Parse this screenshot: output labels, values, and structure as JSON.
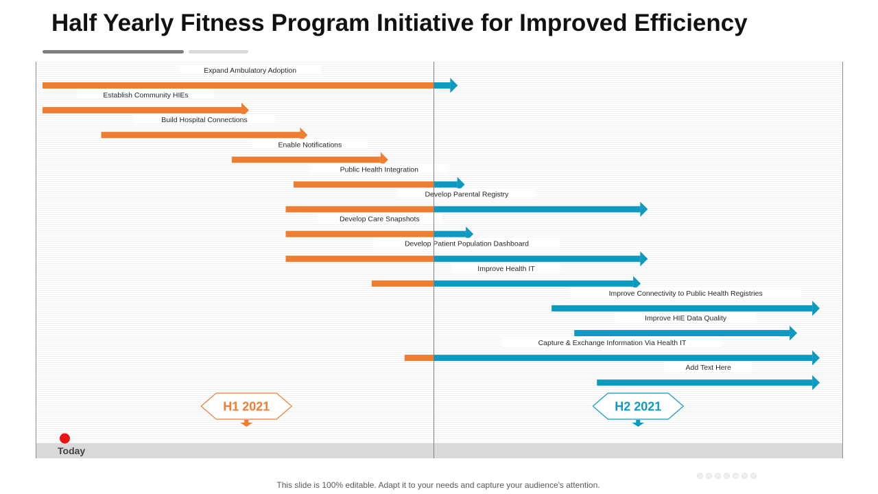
{
  "title": "Half Yearly Fitness Program Initiative for Improved Efficiency",
  "footer": "This slide is 100% editable. Adapt it to your needs and capture your audience's attention.",
  "today_label": "Today",
  "colors": {
    "h1": "#ED7D31",
    "h2": "#0E9AC0",
    "today": "#E81414",
    "divider": "#7f7f7f",
    "band": "#d9d9d9"
  },
  "chart_data": {
    "type": "gantt",
    "periods": [
      {
        "label": "H1 2021",
        "color": "#ED7D31"
      },
      {
        "label": "H2 2021",
        "color": "#0E9AC0"
      }
    ],
    "x_range": [
      0,
      100
    ],
    "divider_at": 50,
    "today_at": 2.5,
    "tasks": [
      {
        "label": "Expand Ambulatory Adoption",
        "start": 0,
        "end": 53.1
      },
      {
        "label": "Establish Community  HIEs",
        "start": 0,
        "end": 26.4
      },
      {
        "label": "Build Hospital Connections",
        "start": 7.5,
        "end": 33.9
      },
      {
        "label": "Enable Notifications",
        "start": 24.2,
        "end": 44.2
      },
      {
        "label": "Public Health Integration",
        "start": 32.1,
        "end": 54.0
      },
      {
        "label": "Develop Parental Registry",
        "start": 31.1,
        "end": 77.4
      },
      {
        "label": "Develop Care Snapshots",
        "start": 31.1,
        "end": 55.1
      },
      {
        "label": "Develop Patient  Population Dashboard",
        "start": 31.1,
        "end": 77.4
      },
      {
        "label": "Improve Health  IT",
        "start": 42.1,
        "end": 76.5
      },
      {
        "label": "Improve Connectivity to Public Health Registries",
        "start": 65.1,
        "end": 99.4
      },
      {
        "label": "Improve  HIE  Data Quality",
        "start": 68.0,
        "end": 96.5
      },
      {
        "label": "Capture & Exchange Information Via Health  IT",
        "start": 46.3,
        "end": 99.4
      },
      {
        "label": "Add Text Here",
        "start": 70.9,
        "end": 99.4
      }
    ]
  }
}
